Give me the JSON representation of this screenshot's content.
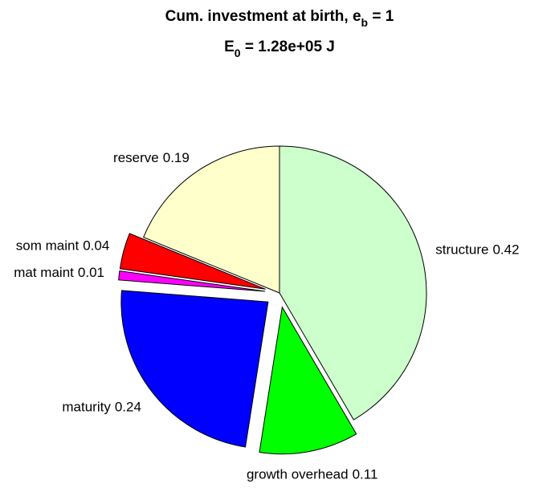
{
  "chart_data": {
    "type": "pie",
    "title": [
      "Cum. investment at birth, e",
      "b",
      " = 1"
    ],
    "subtitle": [
      "E",
      "0",
      " = 1.28e+05 J"
    ],
    "categories": [
      "structure",
      "growth overhead",
      "maturity",
      "mat maint",
      "som maint",
      "reserve"
    ],
    "values": [
      0.42,
      0.11,
      0.24,
      0.01,
      0.04,
      0.19
    ],
    "colors": [
      "#ccffcc",
      "#00ff00",
      "#0000ff",
      "#ff00ff",
      "#ff0000",
      "#ffffcc"
    ],
    "explode": [
      0,
      1,
      1,
      1,
      1,
      0
    ]
  }
}
